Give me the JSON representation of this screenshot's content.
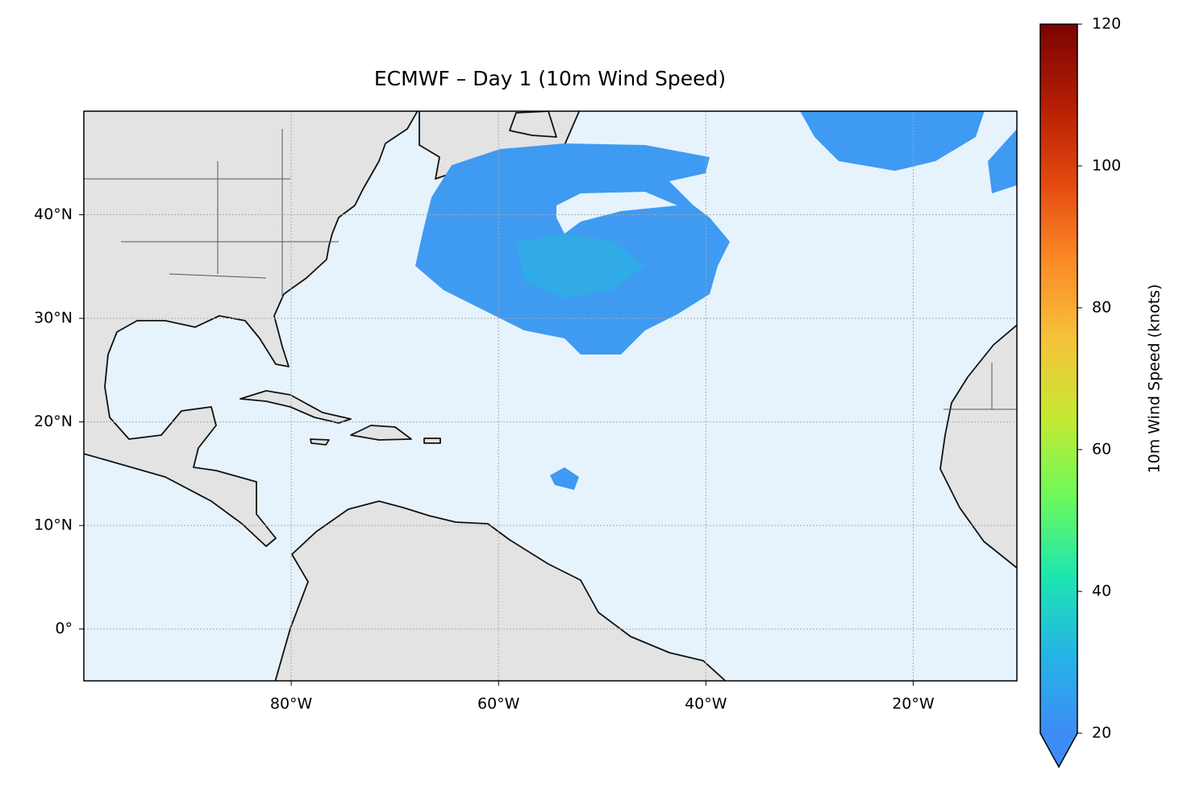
{
  "chart_data": {
    "type": "map",
    "title": "ECMWF – Day 1 (10m Wind Speed)",
    "xlim": [
      -100,
      -10
    ],
    "ylim": [
      -5,
      50
    ],
    "xticks": [
      {
        "value": -80,
        "label": "80°W"
      },
      {
        "value": -60,
        "label": "60°W"
      },
      {
        "value": -40,
        "label": "40°W"
      },
      {
        "value": -20,
        "label": "20°W"
      }
    ],
    "yticks": [
      {
        "value": 0,
        "label": "0°"
      },
      {
        "value": 10,
        "label": "10°N"
      },
      {
        "value": 20,
        "label": "20°N"
      },
      {
        "value": 30,
        "label": "30°N"
      },
      {
        "value": 40,
        "label": "40°N"
      }
    ],
    "grid": true,
    "colorbar": {
      "label": "10m Wind Speed (knots)",
      "lim": [
        20,
        120
      ],
      "ticks": [
        20,
        40,
        60,
        80,
        100,
        120
      ],
      "colors": [
        "#3d8cf5",
        "#25b4e6",
        "#1ee6b0",
        "#6cf95a",
        "#c5e932",
        "#f6c23a",
        "#fb8a27",
        "#e3480f",
        "#b31d03",
        "#7a0403"
      ]
    }
  }
}
